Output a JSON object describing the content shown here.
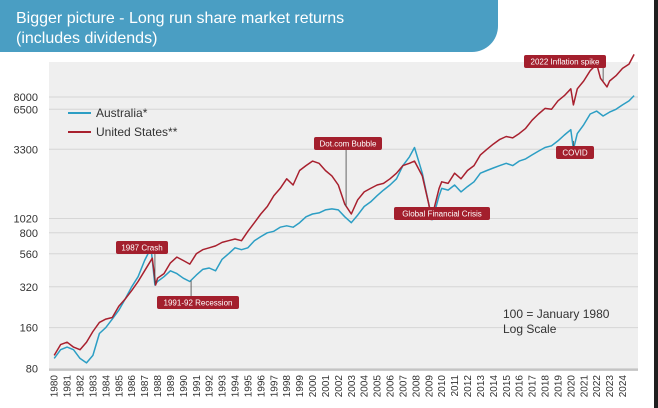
{
  "header": {
    "title_line1": "Bigger picture - Long run share market returns",
    "title_line2": "(includes dividends)"
  },
  "colors": {
    "banner": "#4a9ec3",
    "australia": "#2c9ec4",
    "united_states": "#a8202e",
    "annotation_fill": "#a31f2d",
    "plot_background": "#efefef"
  },
  "chart_data": {
    "type": "line",
    "title": "",
    "xlabel": "",
    "ylabel": "",
    "y_scale": "log",
    "ylim": [
      78,
      14500
    ],
    "xlim": [
      1979.6,
      2025.2
    ],
    "y_ticks": [
      80,
      160,
      320,
      560,
      800,
      1020,
      3300,
      6500,
      8000
    ],
    "x_ticks": [
      "1980",
      "1981",
      "1982",
      "1983",
      "1984",
      "1985",
      "1986",
      "1987",
      "1988",
      "1989",
      "1990",
      "1991",
      "1992",
      "1993",
      "1994",
      "1995",
      "1996",
      "1997",
      "1998",
      "1999",
      "2000",
      "2001",
      "2002",
      "2003",
      "2004",
      "2005",
      "2006",
      "2007",
      "2008",
      "2009",
      "2010",
      "2011",
      "2012",
      "2013",
      "2014",
      "2015",
      "2016",
      "2017",
      "2018",
      "2019",
      "2020",
      "2021",
      "2022",
      "2023",
      "2024"
    ],
    "grid": "horizontal",
    "legend_position": "top-left",
    "series": [
      {
        "name": "Australia*",
        "color": "#2c9ec4",
        "x": [
          1980,
          1980.5,
          1981,
          1981.5,
          1982,
          1982.5,
          1983,
          1983.5,
          1984,
          1984.5,
          1985,
          1985.5,
          1986,
          1986.5,
          1987,
          1987.5,
          1987.8,
          1988,
          1988.5,
          1989,
          1989.5,
          1990,
          1990.5,
          1991,
          1991.5,
          1992,
          1992.5,
          1993,
          1993.5,
          1994,
          1994.5,
          1995,
          1995.5,
          1996,
          1996.5,
          1997,
          1997.5,
          1998,
          1998.5,
          1999,
          1999.5,
          2000,
          2000.5,
          2001,
          2001.5,
          2002,
          2002.5,
          2003,
          2003.5,
          2004,
          2004.5,
          2005,
          2005.5,
          2006,
          2006.5,
          2007,
          2007.5,
          2007.9,
          2008.5,
          2009,
          2009.3,
          2009.8,
          2010,
          2010.5,
          2011,
          2011.5,
          2012,
          2012.5,
          2013,
          2013.5,
          2014,
          2014.5,
          2015,
          2015.5,
          2016,
          2016.5,
          2017,
          2017.5,
          2018,
          2018.5,
          2019,
          2019.5,
          2020,
          2020.2,
          2020.5,
          2021,
          2021.5,
          2022,
          2022.5,
          2023,
          2023.5,
          2024,
          2024.5,
          2024.9
        ],
        "values": [
          95,
          110,
          115,
          110,
          95,
          88,
          100,
          145,
          160,
          185,
          215,
          260,
          320,
          380,
          500,
          620,
          330,
          350,
          380,
          420,
          400,
          370,
          350,
          390,
          430,
          440,
          420,
          510,
          560,
          620,
          600,
          620,
          700,
          750,
          800,
          820,
          880,
          900,
          880,
          950,
          1050,
          1100,
          1120,
          1180,
          1200,
          1180,
          1050,
          950,
          1080,
          1250,
          1350,
          1500,
          1650,
          1800,
          2000,
          2500,
          2900,
          3400,
          2200,
          1300,
          1000,
          1500,
          1700,
          1650,
          1800,
          1600,
          1750,
          1900,
          2200,
          2300,
          2400,
          2500,
          2600,
          2500,
          2700,
          2800,
          3000,
          3200,
          3400,
          3500,
          3800,
          4200,
          4600,
          3300,
          4300,
          5000,
          6000,
          6300,
          5800,
          6200,
          6500,
          7000,
          7500,
          8200
        ]
      },
      {
        "name": "United States**",
        "color": "#a8202e",
        "x": [
          1980,
          1980.5,
          1981,
          1981.5,
          1982,
          1982.5,
          1983,
          1983.5,
          1984,
          1984.5,
          1985,
          1985.5,
          1986,
          1986.5,
          1987,
          1987.6,
          1987.85,
          1988,
          1988.5,
          1989,
          1989.5,
          1990,
          1990.5,
          1991,
          1991.5,
          1992,
          1992.5,
          1993,
          1993.5,
          1994,
          1994.5,
          1995,
          1995.5,
          1996,
          1996.5,
          1997,
          1997.5,
          1998,
          1998.5,
          1999,
          1999.5,
          2000,
          2000.5,
          2001,
          2001.5,
          2002,
          2002.5,
          2003,
          2003.5,
          2004,
          2004.5,
          2005,
          2005.5,
          2006,
          2006.5,
          2007,
          2007.5,
          2007.9,
          2008.5,
          2009,
          2009.2,
          2009.8,
          2010,
          2010.5,
          2011,
          2011.5,
          2012,
          2012.5,
          2013,
          2013.5,
          2014,
          2014.5,
          2015,
          2015.5,
          2016,
          2016.5,
          2017,
          2017.5,
          2018,
          2018.5,
          2019,
          2019.5,
          2020,
          2020.2,
          2020.5,
          2021,
          2021.5,
          2022,
          2022.3,
          2022.8,
          2023,
          2023.5,
          2024,
          2024.5,
          2024.9
        ],
        "values": [
          100,
          120,
          125,
          115,
          110,
          125,
          150,
          175,
          185,
          190,
          230,
          260,
          300,
          350,
          420,
          520,
          330,
          370,
          400,
          480,
          530,
          500,
          470,
          560,
          600,
          620,
          640,
          680,
          700,
          720,
          700,
          820,
          950,
          1100,
          1250,
          1500,
          1700,
          2000,
          1800,
          2300,
          2500,
          2700,
          2600,
          2300,
          2100,
          1800,
          1300,
          1100,
          1400,
          1600,
          1700,
          1800,
          1850,
          2000,
          2200,
          2500,
          2600,
          2700,
          2100,
          1300,
          1000,
          1700,
          1900,
          1850,
          2200,
          2000,
          2300,
          2500,
          3000,
          3300,
          3600,
          3900,
          4100,
          4000,
          4300,
          4700,
          5400,
          6000,
          6600,
          6500,
          7500,
          8200,
          9200,
          7000,
          9200,
          10500,
          12500,
          14000,
          11000,
          9500,
          10500,
          11500,
          13000,
          14000,
          16500
        ]
      }
    ],
    "annotations": [
      {
        "label": "1987 Crash",
        "x": 1987.8,
        "y": 340
      },
      {
        "label": "1991-92 Recession",
        "x": 1990.6,
        "y": 355
      },
      {
        "label": "Dot.com Bubble",
        "x": 2002.6,
        "y": 1250
      },
      {
        "label": "Global Financial Crisis",
        "x": 2009.1,
        "y": 1050
      },
      {
        "label": "COVID",
        "x": 2020.2,
        "y": 3800
      },
      {
        "label": "2022 Inflation spike",
        "x": 2022.5,
        "y": 10500
      }
    ],
    "notes": [
      "100 = January 1980",
      "Log Scale"
    ]
  }
}
